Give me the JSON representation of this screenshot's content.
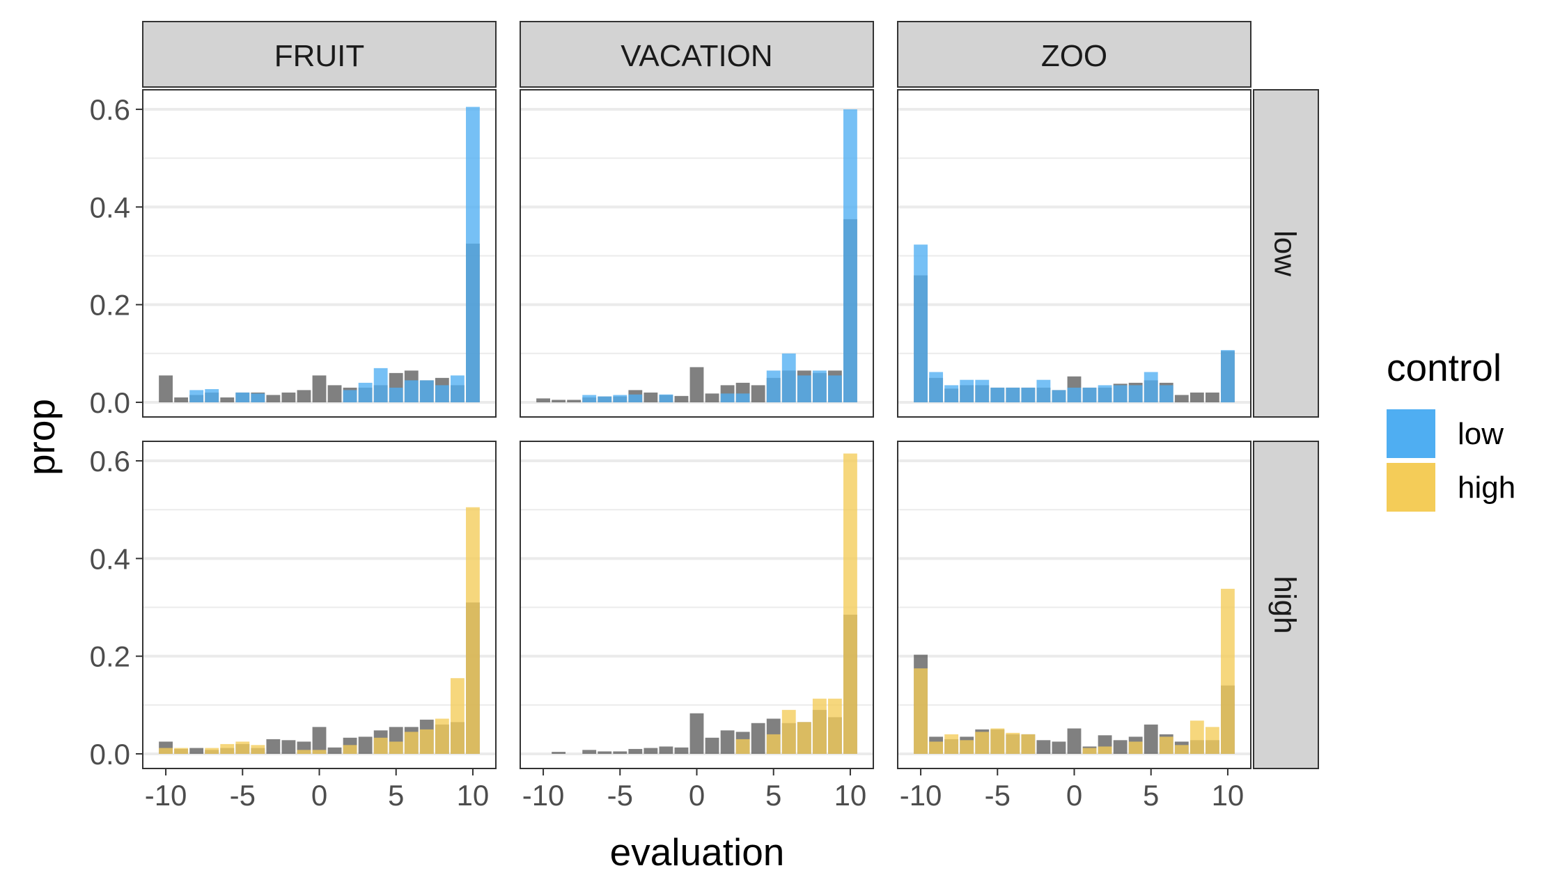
{
  "chart_data": {
    "type": "bar",
    "layout": "faceted histogram grid (rows x columns) with overlapping bars",
    "xlabel": "evaluation",
    "ylabel": "prop",
    "x_ticks": [
      -10,
      -5,
      0,
      5,
      10
    ],
    "y_ticks": [
      0.0,
      0.2,
      0.4,
      0.6
    ],
    "y_tick_labels": [
      "0.0",
      "0.2",
      "0.4",
      "0.6"
    ],
    "x_tick_labels": [
      "-10",
      "-5",
      "0",
      "5",
      "10"
    ],
    "xlim": [
      -11.5,
      11.5
    ],
    "ylim": [
      -0.03,
      0.64
    ],
    "grid": true,
    "columns": [
      "FRUIT",
      "VACATION",
      "ZOO"
    ],
    "rows": [
      "low",
      "high"
    ],
    "x": [
      -10,
      -9,
      -8,
      -7,
      -6,
      -5,
      -4,
      -3,
      -2,
      -1,
      0,
      1,
      2,
      3,
      4,
      5,
      6,
      7,
      8,
      9,
      10
    ],
    "legend": {
      "title": "control",
      "position": "right",
      "entries": [
        {
          "label": "low",
          "color": "#4FAEF2"
        },
        {
          "label": "high",
          "color": "#F4CC58"
        }
      ]
    },
    "colors": {
      "gray_bar": "#555555",
      "low_bar": "#4FAEF2",
      "high_bar": "#F4CC58",
      "strip_bg": "#D3D3D3",
      "gridline": "#EBEBEB",
      "panel_border": "#333333"
    },
    "panels": [
      {
        "column": "FRUIT",
        "row": "low",
        "gray": [
          0.055,
          0.01,
          0.015,
          0.02,
          0.01,
          0.02,
          0.02,
          0.015,
          0.02,
          0.025,
          0.055,
          0.035,
          0.03,
          0.03,
          0.035,
          0.06,
          0.065,
          0.045,
          0.05,
          0.035,
          0.325
        ],
        "color": [
          0.0,
          0.0,
          0.025,
          0.027,
          0.0,
          0.02,
          0.018,
          0.0,
          0.0,
          0.0,
          0.0,
          0.0,
          0.025,
          0.04,
          0.07,
          0.03,
          0.045,
          0.045,
          0.035,
          0.055,
          0.605
        ]
      },
      {
        "column": "VACATION",
        "row": "low",
        "gray": [
          0.008,
          0.005,
          0.005,
          0.01,
          0.012,
          0.012,
          0.025,
          0.02,
          0.015,
          0.013,
          0.072,
          0.018,
          0.035,
          0.04,
          0.035,
          0.05,
          0.065,
          0.065,
          0.06,
          0.065,
          0.375
        ],
        "color": [
          0.0,
          0.0,
          0.0,
          0.015,
          0.012,
          0.015,
          0.016,
          0.0,
          0.016,
          0.0,
          0.0,
          0.0,
          0.018,
          0.018,
          0.0,
          0.065,
          0.1,
          0.055,
          0.065,
          0.055,
          0.6
        ]
      },
      {
        "column": "ZOO",
        "row": "low",
        "gray": [
          0.26,
          0.05,
          0.028,
          0.035,
          0.035,
          0.03,
          0.03,
          0.03,
          0.03,
          0.025,
          0.053,
          0.03,
          0.03,
          0.038,
          0.04,
          0.045,
          0.04,
          0.015,
          0.02,
          0.02,
          0.105
        ],
        "color": [
          0.323,
          0.062,
          0.035,
          0.046,
          0.046,
          0.03,
          0.03,
          0.03,
          0.046,
          0.025,
          0.03,
          0.03,
          0.035,
          0.035,
          0.035,
          0.062,
          0.035,
          0.0,
          0.0,
          0.0,
          0.107
        ]
      },
      {
        "column": "FRUIT",
        "row": "high",
        "gray": [
          0.025,
          0.01,
          0.012,
          0.008,
          0.012,
          0.02,
          0.012,
          0.03,
          0.028,
          0.025,
          0.055,
          0.013,
          0.033,
          0.035,
          0.048,
          0.055,
          0.055,
          0.07,
          0.06,
          0.065,
          0.31
        ],
        "color": [
          0.012,
          0.012,
          0.0,
          0.012,
          0.02,
          0.025,
          0.018,
          0.0,
          0.0,
          0.008,
          0.008,
          0.0,
          0.018,
          0.0,
          0.033,
          0.025,
          0.045,
          0.05,
          0.072,
          0.155,
          0.505
        ]
      },
      {
        "column": "VACATION",
        "row": "high",
        "gray": [
          0.0,
          0.004,
          0.0,
          0.008,
          0.005,
          0.005,
          0.01,
          0.012,
          0.015,
          0.013,
          0.083,
          0.033,
          0.048,
          0.045,
          0.063,
          0.072,
          0.063,
          0.065,
          0.09,
          0.075,
          0.285
        ],
        "color": [
          0.0,
          0.0,
          0.0,
          0.0,
          0.0,
          0.0,
          0.0,
          0.0,
          0.0,
          0.0,
          0.0,
          0.0,
          0.0,
          0.03,
          0.0,
          0.04,
          0.09,
          0.065,
          0.113,
          0.113,
          0.615
        ]
      },
      {
        "column": "ZOO",
        "row": "high",
        "gray": [
          0.203,
          0.035,
          0.03,
          0.035,
          0.05,
          0.05,
          0.04,
          0.04,
          0.028,
          0.025,
          0.052,
          0.015,
          0.038,
          0.028,
          0.035,
          0.06,
          0.04,
          0.025,
          0.028,
          0.028,
          0.14
        ],
        "color": [
          0.175,
          0.025,
          0.04,
          0.028,
          0.045,
          0.052,
          0.043,
          0.04,
          0.0,
          0.0,
          0.0,
          0.012,
          0.015,
          0.0,
          0.025,
          0.0,
          0.035,
          0.018,
          0.068,
          0.055,
          0.338
        ]
      }
    ]
  }
}
